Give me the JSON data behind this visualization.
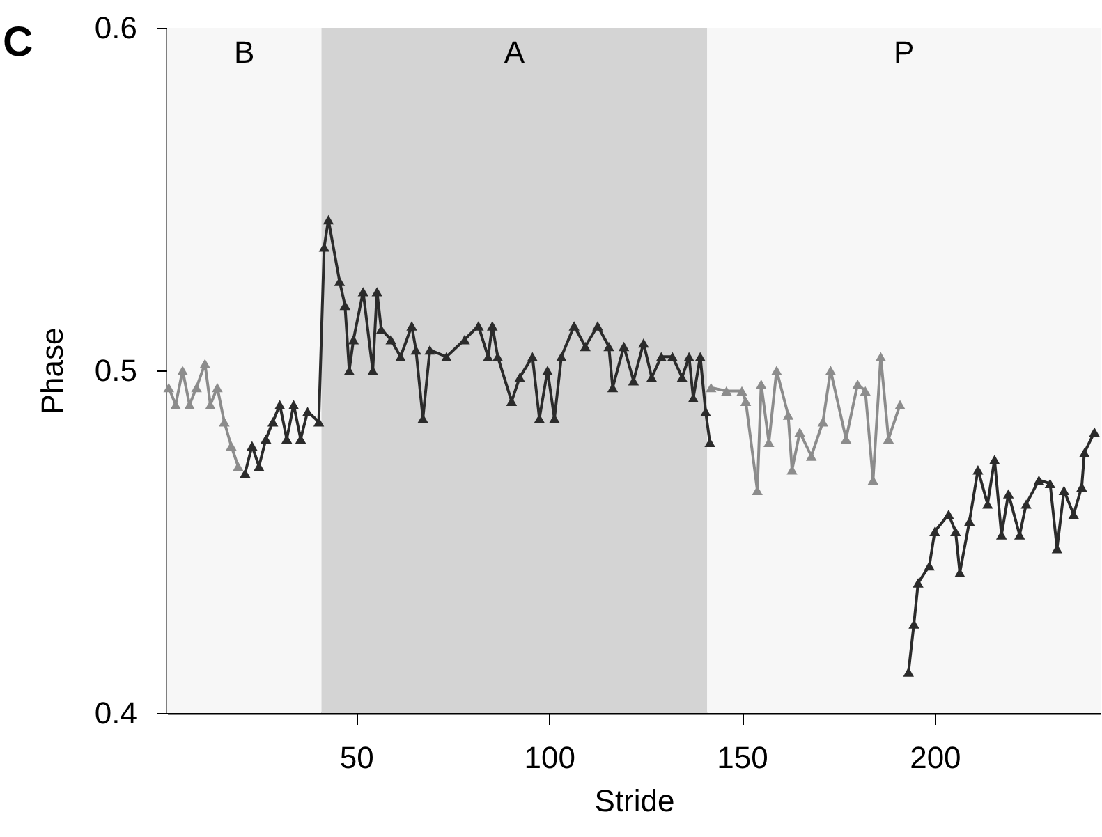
{
  "chart_data": {
    "type": "line",
    "xlabel": "Stride",
    "ylabel": "Phase",
    "annotations": [
      "C"
    ],
    "xlim": [
      1,
      243
    ],
    "xticks": [
      50,
      100,
      150,
      200
    ],
    "ylim": [
      0.4,
      0.6
    ],
    "yticks": [
      0.4,
      0.5,
      0.6
    ],
    "grid": false,
    "marker": "triangle",
    "line_style": "solid",
    "bands": [
      {
        "axis": "x",
        "from": 1,
        "to": 41,
        "label": "B",
        "color": "#f7f7f7"
      },
      {
        "axis": "x",
        "from": 41,
        "to": 141,
        "label": "A",
        "color": "#d4d4d4"
      },
      {
        "axis": "x",
        "from": 141,
        "to": 243,
        "label": "P",
        "color": "#f7f7f7"
      }
    ],
    "series": [
      {
        "color": "#8c8c8c",
        "x": [
          1.4,
          3.2,
          5,
          6.8,
          8.6,
          10.8,
          12.2,
          14,
          15.8,
          17.6,
          19.4
        ],
        "values": [
          0.495,
          0.49,
          0.5,
          0.49,
          0.495,
          0.502,
          0.49,
          0.495,
          0.485,
          0.478,
          0.472
        ]
      },
      {
        "color": "#2b2b2b",
        "x": [
          21.2,
          23,
          24.8,
          26.6,
          28.4,
          30.2,
          32,
          33.8,
          35.6,
          37.4,
          40.3,
          41.7,
          42.8,
          45.7,
          47.1,
          48.2,
          49.3,
          51.8,
          54.3,
          55.4,
          56.5,
          59,
          61.5,
          64.4,
          65.5,
          67.3,
          69.1,
          73.4,
          78.1,
          81.7,
          84.2,
          85.3,
          86.7,
          90.3,
          92.4,
          95.7,
          97.5,
          99.6,
          101.4,
          103.2,
          106.5,
          109.4,
          112.6,
          115.5,
          116.5,
          119.4,
          121.9,
          124.5,
          126.6,
          129.1,
          132,
          134.5,
          136.3,
          137.4,
          139.2,
          140.6,
          141.7
        ],
        "values": [
          0.47,
          0.478,
          0.472,
          0.48,
          0.485,
          0.49,
          0.48,
          0.49,
          0.48,
          0.488,
          0.485,
          0.536,
          0.544,
          0.526,
          0.519,
          0.5,
          0.509,
          0.523,
          0.5,
          0.523,
          0.512,
          0.509,
          0.504,
          0.513,
          0.506,
          0.486,
          0.506,
          0.504,
          0.509,
          0.513,
          0.504,
          0.513,
          0.504,
          0.491,
          0.498,
          0.504,
          0.486,
          0.5,
          0.486,
          0.504,
          0.513,
          0.507,
          0.513,
          0.507,
          0.495,
          0.507,
          0.497,
          0.508,
          0.498,
          0.504,
          0.504,
          0.498,
          0.504,
          0.492,
          0.504,
          0.488,
          0.479
        ]
      },
      {
        "color": "#8c8c8c",
        "x": [
          142,
          146,
          150,
          151,
          154,
          155,
          157,
          159,
          162,
          163,
          165,
          168,
          171,
          173,
          177,
          180,
          182,
          184,
          186,
          188,
          191
        ],
        "values": [
          0.495,
          0.494,
          0.494,
          0.491,
          0.465,
          0.496,
          0.479,
          0.5,
          0.487,
          0.471,
          0.482,
          0.475,
          0.485,
          0.5,
          0.48,
          0.496,
          0.494,
          0.468,
          0.504,
          0.48,
          0.49
        ]
      },
      {
        "color": "#2b2b2b",
        "x": [
          193.2,
          194.6,
          195.7,
          198.6,
          200,
          203.6,
          205.4,
          206.5,
          209,
          211.2,
          213.7,
          215.5,
          217.3,
          219.1,
          222,
          223.7,
          227,
          229.9,
          231.7,
          233.5,
          236,
          238.1,
          238.8,
          241.4
        ],
        "values": [
          0.412,
          0.426,
          0.438,
          0.443,
          0.453,
          0.458,
          0.453,
          0.441,
          0.456,
          0.471,
          0.461,
          0.474,
          0.452,
          0.464,
          0.452,
          0.461,
          0.468,
          0.467,
          0.448,
          0.465,
          0.458,
          0.466,
          0.476,
          0.482
        ]
      }
    ]
  }
}
